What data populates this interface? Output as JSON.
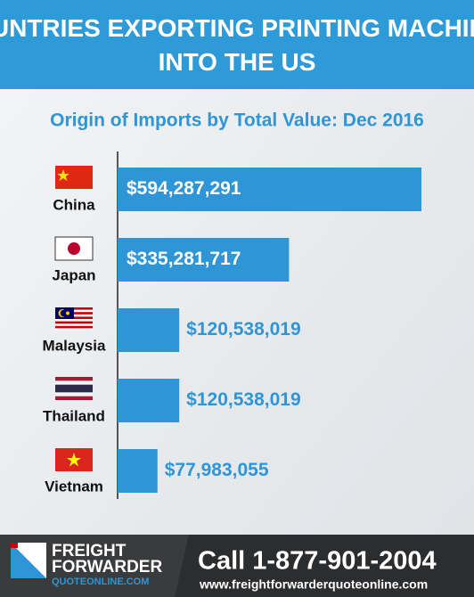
{
  "chart_data": {
    "type": "bar",
    "orientation": "horizontal",
    "title": "COUNTRIES EXPORTING PRINTING MACHINES INTO THE US",
    "subtitle": "Origin of Imports by Total Value: Dec 2016",
    "categories": [
      "China",
      "Japan",
      "Malaysia",
      "Thailand",
      "Vietnam"
    ],
    "values": [
      594287291,
      335281717,
      120538019,
      120538019,
      77983055
    ],
    "value_labels": [
      "$594,287,291",
      "$335,281,717",
      "$120,538,019",
      "$120,538,019",
      "$77,983,055"
    ],
    "color": "#2e96d6",
    "xlim": [
      0,
      594287291
    ]
  },
  "footer": {
    "logo": [
      "FREIGHT",
      "FORWARDER",
      "QUOTEONLINE.COM"
    ],
    "call": "Call 1-877-901-2004",
    "website": "www.freightforwarderquoteonline.com"
  }
}
